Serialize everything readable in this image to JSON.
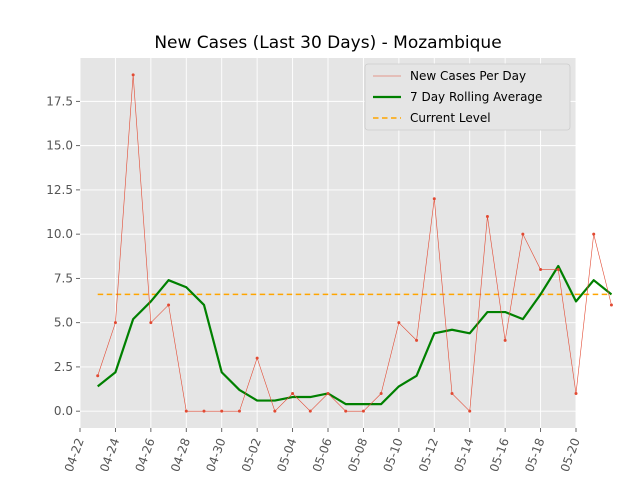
{
  "chart_data": {
    "type": "line",
    "title": "New Cases (Last 30 Days) - Mozambique",
    "xlabel": "",
    "ylabel": "",
    "x_range": [
      "2020-04-22",
      "2020-05-20"
    ],
    "x_ticks": [
      "2020-04-22",
      "2020-04-24",
      "2020-04-26",
      "2020-04-28",
      "2020-04-30",
      "2020-05-02",
      "2020-05-04",
      "2020-05-06",
      "2020-05-08",
      "2020-05-10",
      "2020-05-12",
      "2020-05-14",
      "2020-05-16",
      "2020-05-18",
      "2020-05-20"
    ],
    "x_tick_labels": [
      "04-22",
      "04-24",
      "04-26",
      "04-28",
      "04-30",
      "05-02",
      "05-04",
      "05-06",
      "05-08",
      "05-10",
      "05-12",
      "05-14",
      "05-16",
      "05-18",
      "05-20"
    ],
    "ylim": [
      -0.95,
      19.95
    ],
    "y_ticks": [
      0.0,
      2.5,
      5.0,
      7.5,
      10.0,
      12.5,
      15.0,
      17.5
    ],
    "y_tick_labels": [
      "0.0",
      "2.5",
      "5.0",
      "7.5",
      "10.0",
      "12.5",
      "15.0",
      "17.5"
    ],
    "grid": true,
    "legend_position": "top-right",
    "x": [
      "2020-04-23",
      "2020-04-24",
      "2020-04-25",
      "2020-04-26",
      "2020-04-27",
      "2020-04-28",
      "2020-04-29",
      "2020-04-30",
      "2020-05-01",
      "2020-05-02",
      "2020-05-03",
      "2020-05-04",
      "2020-05-05",
      "2020-05-06",
      "2020-05-07",
      "2020-05-08",
      "2020-05-09",
      "2020-05-10",
      "2020-05-11",
      "2020-05-12",
      "2020-05-13",
      "2020-05-14",
      "2020-05-15",
      "2020-05-16",
      "2020-05-17",
      "2020-05-18",
      "2020-05-19",
      "2020-05-20",
      "2020-05-21",
      "2020-05-22"
    ],
    "series": [
      {
        "name": "New Cases Per Day",
        "color": "#e24a33",
        "style": "thin-line-with-markers",
        "values": [
          2,
          5,
          19,
          5,
          6,
          0,
          0,
          0,
          0,
          3,
          0,
          1,
          0,
          1,
          0,
          0,
          1,
          5,
          4,
          12,
          1,
          0,
          11,
          4,
          10,
          8,
          8,
          1,
          10,
          6
        ]
      },
      {
        "name": "7 Day Rolling Average",
        "color": "#008000",
        "style": "thick-line",
        "values": [
          1.4,
          2.2,
          5.2,
          6.2,
          7.4,
          7.0,
          6.0,
          2.2,
          1.2,
          0.6,
          0.6,
          0.8,
          0.8,
          1.0,
          0.4,
          0.4,
          0.4,
          1.4,
          2.0,
          4.4,
          4.6,
          4.4,
          5.6,
          5.6,
          5.2,
          6.6,
          8.2,
          6.2,
          7.4,
          6.6
        ]
      },
      {
        "name": "Current Level",
        "color": "#ffa500",
        "style": "dashed",
        "values": [
          6.6,
          6.6,
          6.6,
          6.6,
          6.6,
          6.6,
          6.6,
          6.6,
          6.6,
          6.6,
          6.6,
          6.6,
          6.6,
          6.6,
          6.6,
          6.6,
          6.6,
          6.6,
          6.6,
          6.6,
          6.6,
          6.6,
          6.6,
          6.6,
          6.6,
          6.6,
          6.6,
          6.6,
          6.6,
          6.6
        ]
      }
    ]
  },
  "colors": {
    "plot_background": "#e5e5e5",
    "grid": "#ffffff",
    "tick_text": "#555555"
  }
}
